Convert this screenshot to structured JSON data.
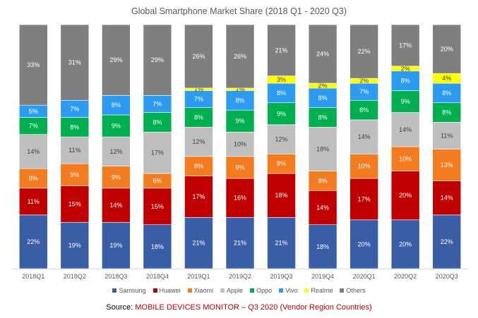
{
  "title": "Global Smartphone Market Share (2018 Q1 - 2020 Q3)",
  "source_label": "Source:",
  "source_text": "MOBILE DEVICES MONITOR – Q3 2020 (Vendor Region Countries)",
  "chart_data": {
    "type": "bar",
    "stacked": true,
    "normalized_percent": true,
    "title": "Global Smartphone Market Share (2018 Q1 - 2020 Q3)",
    "categories": [
      "2018Q1",
      "2018Q2",
      "2018Q3",
      "2018Q4",
      "2019Q1",
      "2019Q2",
      "2019Q3",
      "2019Q4",
      "2020Q1",
      "2020Q2",
      "2020Q3"
    ],
    "legend_position": "bottom",
    "grid": false,
    "series": [
      {
        "name": "Samsung",
        "color": "#3a5ea6",
        "values": [
          22,
          19,
          19,
          18,
          21,
          21,
          21,
          18,
          20,
          20,
          22
        ],
        "labels": [
          "22%",
          "19%",
          "19%",
          "18%",
          "21%",
          "21%",
          "21%",
          "18%",
          "20%",
          "20%",
          "22%"
        ]
      },
      {
        "name": "Huawei",
        "color": "#c00000",
        "values": [
          11,
          15,
          14,
          15,
          17,
          16,
          18,
          14,
          17,
          20,
          14
        ],
        "labels": [
          "11%",
          "15%",
          "14%",
          "15%",
          "17%",
          "16%",
          "18%",
          "14%",
          "17%",
          "20%",
          "14%"
        ]
      },
      {
        "name": "Xiaomi",
        "color": "#f47c20",
        "values": [
          8,
          9,
          9,
          6,
          8,
          9,
          8,
          8,
          10,
          10,
          13
        ],
        "labels": [
          "8%",
          "9%",
          "9%",
          "6%",
          "8%",
          "9%",
          "8%",
          "8%",
          "10%",
          "10%",
          "13%"
        ]
      },
      {
        "name": "Apple",
        "color": "#bfbfbf",
        "values": [
          14,
          11,
          12,
          17,
          12,
          10,
          12,
          18,
          14,
          14,
          11
        ],
        "labels": [
          "14%",
          "11%",
          "12%",
          "17%",
          "12%",
          "10%",
          "12%",
          "18%",
          "14%",
          "14%",
          "11%"
        ]
      },
      {
        "name": "Oppo",
        "color": "#00b050",
        "values": [
          7,
          8,
          9,
          8,
          8,
          9,
          9,
          8,
          8,
          9,
          8
        ],
        "labels": [
          "7%",
          "8%",
          "9%",
          "8%",
          "8%",
          "9%",
          "9%",
          "8%",
          "8%",
          "9%",
          "8%"
        ]
      },
      {
        "name": "Vivo",
        "color": "#2d9cf0",
        "values": [
          5,
          7,
          8,
          7,
          7,
          8,
          8,
          8,
          7,
          8,
          8
        ],
        "labels": [
          "5%",
          "7%",
          "8%",
          "7%",
          "7%",
          "8%",
          "8%",
          "8%",
          "7%",
          "8%",
          "8%"
        ]
      },
      {
        "name": "Realme",
        "color": "#ffff00",
        "values": [
          0,
          0,
          0,
          0,
          1,
          1,
          3,
          2,
          2,
          2,
          4
        ],
        "labels": [
          "",
          "",
          "",
          "",
          "1%",
          "1%",
          "3%",
          "2%",
          "2%",
          "2%",
          "4%"
        ]
      },
      {
        "name": "Others",
        "color": "#7f7f7f",
        "values": [
          33,
          31,
          29,
          29,
          26,
          26,
          21,
          24,
          22,
          17,
          20
        ],
        "labels": [
          "33%",
          "31%",
          "29%",
          "29%",
          "26%",
          "26%",
          "21%",
          "24%",
          "22%",
          "17%",
          "20%"
        ]
      }
    ]
  }
}
